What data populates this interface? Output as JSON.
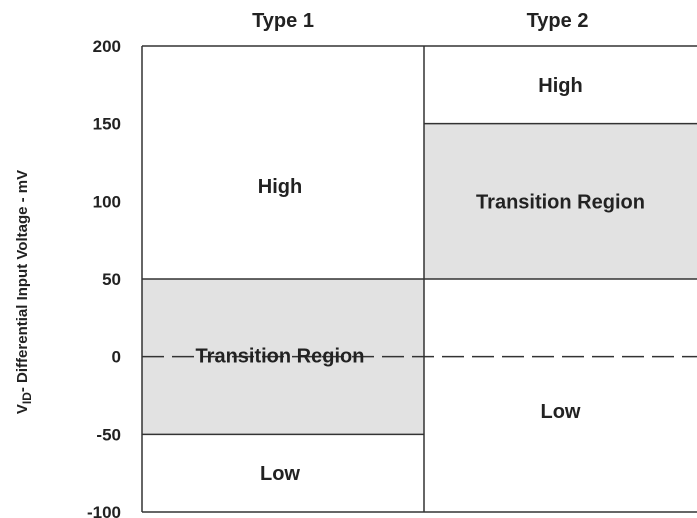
{
  "chart_data": {
    "type": "other",
    "description_type": "region-diagram",
    "ylabel_prefix": "V",
    "ylabel_subscript": "ID",
    "ylabel_suffix": "- Differential Input Voltage - mV",
    "ylim": [
      -100,
      200
    ],
    "y_ticks": [
      200,
      150,
      100,
      50,
      0,
      -50,
      -100
    ],
    "columns": [
      {
        "name": "Type 1",
        "regions": [
          {
            "label": "High",
            "from": 50,
            "to": 200,
            "shaded": false
          },
          {
            "label": "Transition Region",
            "from": -50,
            "to": 50,
            "shaded": true
          },
          {
            "label": "Low",
            "from": -100,
            "to": -50,
            "shaded": false
          }
        ]
      },
      {
        "name": "Type 2",
        "regions": [
          {
            "label": "High",
            "from": 150,
            "to": 200,
            "shaded": false
          },
          {
            "label": "Transition Region",
            "from": 50,
            "to": 150,
            "shaded": true
          },
          {
            "label": "Low",
            "from": -100,
            "to": 50,
            "shaded": false
          }
        ]
      }
    ],
    "reference_line": {
      "y": 0,
      "style": "dashed"
    },
    "colors": {
      "shaded": "#e2e2e2",
      "border": "#333333",
      "text": "#222222"
    }
  }
}
